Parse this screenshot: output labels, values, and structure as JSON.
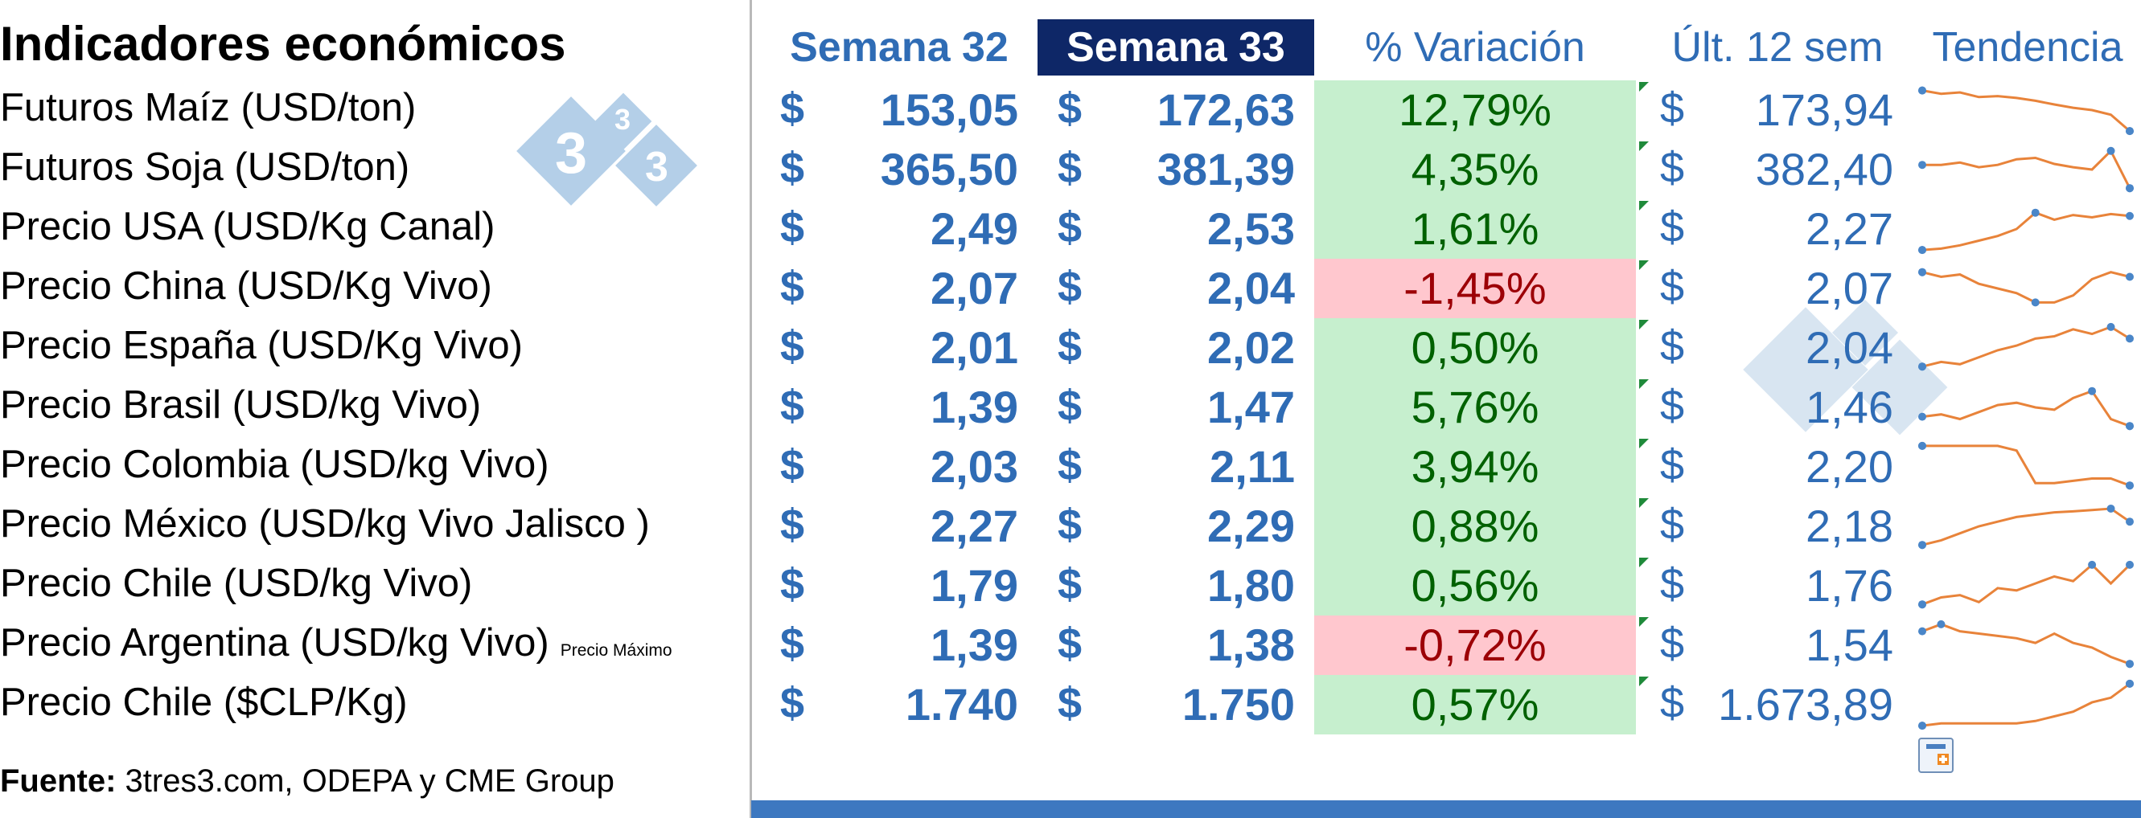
{
  "title": "Indicadores económicos",
  "headers": {
    "week_prev": "Semana 32",
    "week_curr": "Semana 33",
    "variation": "% Variación",
    "last12": "Últ. 12 sem",
    "trend": "Tendencia"
  },
  "currency_symbol": "$",
  "rows": [
    {
      "label": "Futuros Maíz (USD/ton)",
      "note": "",
      "week_prev": "153,05",
      "week_curr": "172,63",
      "variation": "12,79%",
      "trend_dir": "positive",
      "last12": "173,94",
      "spark": [
        0.92,
        0.85,
        0.88,
        0.78,
        0.8,
        0.76,
        0.7,
        0.62,
        0.55,
        0.5,
        0.4,
        0.05
      ]
    },
    {
      "label": "Futuros Soja (USD/ton)",
      "note": "",
      "week_prev": "365,50",
      "week_curr": "381,39",
      "variation": "4,35%",
      "trend_dir": "positive",
      "last12": "382,40",
      "spark": [
        0.6,
        0.6,
        0.65,
        0.55,
        0.6,
        0.72,
        0.75,
        0.62,
        0.55,
        0.5,
        0.9,
        0.1
      ]
    },
    {
      "label": "Precio USA (USD/Kg Canal)",
      "note": "",
      "week_prev": "2,49",
      "week_curr": "2,53",
      "variation": "1,61%",
      "trend_dir": "positive",
      "last12": "2,27",
      "spark": [
        0.05,
        0.08,
        0.15,
        0.25,
        0.35,
        0.5,
        0.85,
        0.7,
        0.8,
        0.75,
        0.82,
        0.78
      ]
    },
    {
      "label": "Precio China (USD/Kg Vivo)",
      "note": "",
      "week_prev": "2,07",
      "week_curr": "2,04",
      "variation": "-1,45%",
      "trend_dir": "negative",
      "last12": "2,07",
      "spark": [
        0.85,
        0.75,
        0.8,
        0.6,
        0.5,
        0.4,
        0.2,
        0.2,
        0.35,
        0.7,
        0.85,
        0.75
      ]
    },
    {
      "label": "Precio España (USD/Kg Vivo)",
      "note": "",
      "week_prev": "2,01",
      "week_curr": "2,02",
      "variation": "0,50%",
      "trend_dir": "positive",
      "last12": "2,04",
      "spark": [
        0.1,
        0.2,
        0.15,
        0.3,
        0.45,
        0.55,
        0.7,
        0.75,
        0.9,
        0.8,
        0.95,
        0.7
      ]
    },
    {
      "label": "Precio  Brasil (USD/kg Vivo)",
      "note": "",
      "week_prev": "1,39",
      "week_curr": "1,47",
      "variation": "5,76%",
      "trend_dir": "positive",
      "last12": "1,46",
      "spark": [
        0.3,
        0.35,
        0.25,
        0.4,
        0.55,
        0.6,
        0.5,
        0.45,
        0.7,
        0.85,
        0.25,
        0.1
      ]
    },
    {
      "label": "Precio Colombia (USD/kg Vivo)",
      "note": "",
      "week_prev": "2,03",
      "week_curr": "2,11",
      "variation": "3,94%",
      "trend_dir": "positive",
      "last12": "2,20",
      "spark": [
        0.95,
        0.95,
        0.95,
        0.95,
        0.95,
        0.85,
        0.15,
        0.15,
        0.2,
        0.25,
        0.25,
        0.1
      ]
    },
    {
      "label": "Precio México (USD/kg Vivo Jalisco )",
      "note": "",
      "week_prev": "2,27",
      "week_curr": "2,29",
      "variation": "0,88%",
      "trend_dir": "positive",
      "last12": "2,18",
      "spark": [
        0.1,
        0.2,
        0.35,
        0.5,
        0.6,
        0.7,
        0.75,
        0.8,
        0.82,
        0.85,
        0.88,
        0.6
      ]
    },
    {
      "label": "Precio Chile (USD/kg Vivo)",
      "note": "",
      "week_prev": "1,79",
      "week_curr": "1,80",
      "variation": "0,56%",
      "trend_dir": "positive",
      "last12": "1,76",
      "spark": [
        0.1,
        0.25,
        0.3,
        0.15,
        0.45,
        0.4,
        0.55,
        0.7,
        0.6,
        0.95,
        0.55,
        0.95
      ]
    },
    {
      "label": "Precio Argentina (USD/kg Vivo)",
      "note": "Precio Máximo",
      "week_prev": "1,39",
      "week_curr": "1,38",
      "variation": "-0,72%",
      "trend_dir": "negative",
      "last12": "1,54",
      "spark": [
        0.8,
        0.95,
        0.8,
        0.75,
        0.7,
        0.65,
        0.55,
        0.75,
        0.55,
        0.45,
        0.25,
        0.1
      ]
    },
    {
      "label": "Precio Chile ($CLP/Kg)",
      "note": "",
      "week_prev": "1.740",
      "week_curr": "1.750",
      "variation": "0,57%",
      "trend_dir": "positive",
      "last12": "1.673,89",
      "spark": [
        0.05,
        0.1,
        0.1,
        0.1,
        0.1,
        0.1,
        0.15,
        0.25,
        0.35,
        0.55,
        0.65,
        0.95
      ]
    }
  ],
  "source": {
    "label": "Fuente:",
    "text": " 3tres3.com, ODEPA y CME Group"
  },
  "watermark": {
    "digits": [
      "3",
      "3",
      "3"
    ],
    "color": "#a9c7e2"
  },
  "colors": {
    "header_blue": "#2f6cb5",
    "header_dark_bg": "#0e2767",
    "positive_bg": "#c6efce",
    "positive_text": "#006100",
    "negative_bg": "#ffc7ce",
    "negative_text": "#9c0006",
    "spark_line": "#e8833a",
    "spark_marker": "#4a86c8",
    "bottom_bar": "#3d78c0"
  },
  "icons": {
    "quick_analysis": "quick-analysis-icon"
  }
}
